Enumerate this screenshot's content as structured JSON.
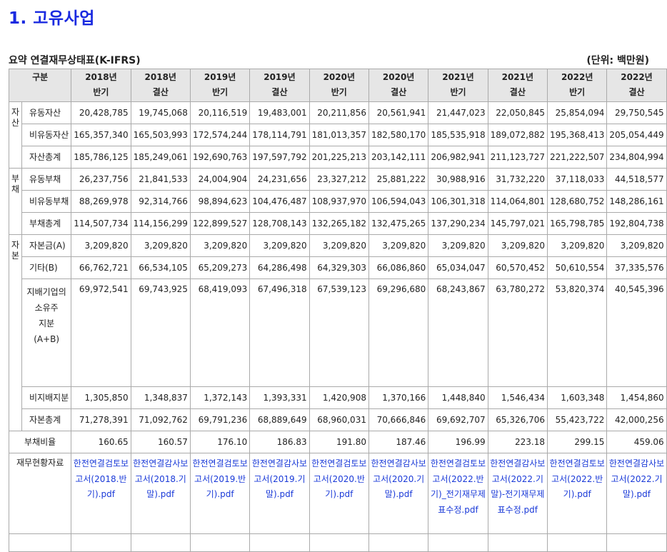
{
  "title": "1. 고유사업",
  "table_title": "요약 연결재무상태표(K-IFRS)",
  "unit": "(단위: 백만원)",
  "header": {
    "label": "구분",
    "columns": [
      "2018년\n반기",
      "2018년\n결산",
      "2019년\n반기",
      "2019년\n결산",
      "2020년\n반기",
      "2020년\n결산",
      "2021년\n반기",
      "2021년\n결산",
      "2022년\n반기",
      "2022년\n결산"
    ]
  },
  "groups": {
    "assets": "자산",
    "liabilities": "부채",
    "equity": "자본"
  },
  "rows": {
    "current_assets": {
      "label": "유동자산",
      "values": [
        "20,428,785",
        "19,745,068",
        "20,116,519",
        "19,483,001",
        "20,211,856",
        "20,561,941",
        "21,447,023",
        "22,050,845",
        "25,854,094",
        "29,750,545"
      ]
    },
    "noncurrent_assets": {
      "label": "비유동자산",
      "values": [
        "165,357,340",
        "165,503,993",
        "172,574,244",
        "178,114,791",
        "181,013,357",
        "182,580,170",
        "185,535,918",
        "189,072,882",
        "195,368,413",
        "205,054,449"
      ]
    },
    "total_assets": {
      "label": "자산총계",
      "values": [
        "185,786,125",
        "185,249,061",
        "192,690,763",
        "197,597,792",
        "201,225,213",
        "203,142,111",
        "206,982,941",
        "211,123,727",
        "221,222,507",
        "234,804,994"
      ]
    },
    "current_liabilities": {
      "label": "유동부채",
      "values": [
        "26,237,756",
        "21,841,533",
        "24,004,904",
        "24,231,656",
        "23,327,212",
        "25,881,222",
        "30,988,916",
        "31,732,220",
        "37,118,033",
        "44,518,577"
      ]
    },
    "noncurrent_liabilities": {
      "label": "비유동부채",
      "values": [
        "88,269,978",
        "92,314,766",
        "98,894,623",
        "104,476,487",
        "108,937,970",
        "106,594,043",
        "106,301,318",
        "114,064,801",
        "128,680,752",
        "148,286,161"
      ]
    },
    "total_liabilities": {
      "label": "부채총계",
      "values": [
        "114,507,734",
        "114,156,299",
        "122,899,527",
        "128,708,143",
        "132,265,182",
        "132,475,265",
        "137,290,234",
        "145,797,021",
        "165,798,785",
        "192,804,738"
      ]
    },
    "capital_stock": {
      "label": "자본금(A)",
      "values": [
        "3,209,820",
        "3,209,820",
        "3,209,820",
        "3,209,820",
        "3,209,820",
        "3,209,820",
        "3,209,820",
        "3,209,820",
        "3,209,820",
        "3,209,820"
      ]
    },
    "other": {
      "label": "기타(B)",
      "values": [
        "66,762,721",
        "66,534,105",
        "65,209,273",
        "64,286,498",
        "64,329,303",
        "66,086,860",
        "65,034,047",
        "60,570,452",
        "50,610,554",
        "37,335,576"
      ]
    },
    "controlling": {
      "label": "지배기업의\n소유주\n지분\n(A+B)",
      "values": [
        "69,972,541",
        "69,743,925",
        "68,419,093",
        "67,496,318",
        "67,539,123",
        "69,296,680",
        "68,243,867",
        "63,780,272",
        "53,820,374",
        "40,545,396"
      ]
    },
    "noncontrolling": {
      "label": "비지배지분",
      "values": [
        "1,305,850",
        "1,348,837",
        "1,372,143",
        "1,393,331",
        "1,420,908",
        "1,370,166",
        "1,448,840",
        "1,546,434",
        "1,603,348",
        "1,454,860"
      ]
    },
    "total_equity": {
      "label": "자본총계",
      "values": [
        "71,278,391",
        "71,092,762",
        "69,791,236",
        "68,889,649",
        "68,960,031",
        "70,666,846",
        "69,692,707",
        "65,326,706",
        "55,423,722",
        "42,000,256"
      ]
    }
  },
  "debt_ratio": {
    "label": "부채비율",
    "values": [
      "160.65",
      "160.57",
      "176.10",
      "186.83",
      "191.80",
      "187.46",
      "196.99",
      "223.18",
      "299.15",
      "459.06"
    ]
  },
  "reports": {
    "label": "재무현황자료",
    "links": [
      "한전연결검토보고서(2018.반기).pdf",
      "한전연결감사보고서(2018.기말).pdf",
      "한전연결검토보고서(2019.반기).pdf",
      "한전연결감사보고서(2019.기말).pdf",
      "한전연결검토보고서(2020.반기).pdf",
      "한전연결감사보고서(2020.기말).pdf",
      "한전연결검토보고서(2022.반기)_전기재무제표수정.pdf",
      "한전연결감사보고서(2022.기말)-전기재무제표수정.pdf",
      "한전연결검토보고서(2022.반기).pdf",
      "한전연결감사보고서(2022.기말).pdf"
    ]
  }
}
